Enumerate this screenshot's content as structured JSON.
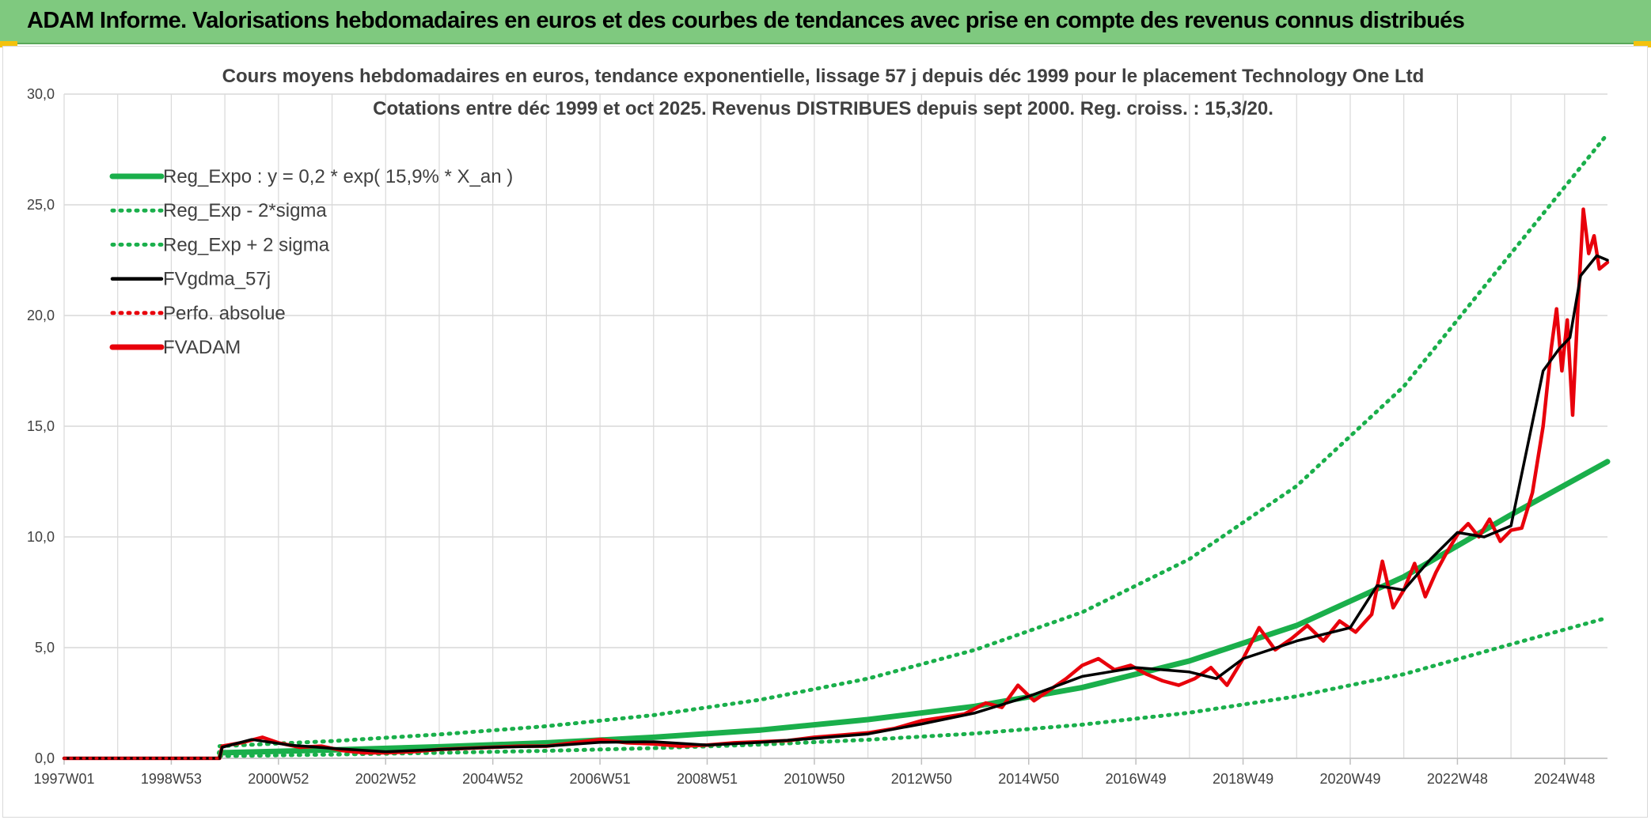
{
  "header": {
    "title": "ADAM Informe. Valorisations hebdomadaires en euros et des courbes de tendances avec prise en compte des revenus connus distribués"
  },
  "colors": {
    "header_bg": "#7fc97f",
    "reg_green": "#1aaf4b",
    "black": "#000000",
    "red": "#e8000b",
    "grid": "#d9d9d9",
    "text": "#404040"
  },
  "chart_data": {
    "type": "line",
    "title": "Cours moyens hebdomadaires en euros, tendance exponentielle, lissage 57 j depuis déc 1999 pour le placement Technology One Ltd",
    "subtitle": "Cotations entre déc 1999 et oct 2025. Revenus DISTRIBUES depuis sept 2000. Reg. croiss. : 15,3/20.",
    "x_tick_labels": [
      "1997W01",
      "1998W53",
      "2000W52",
      "2002W52",
      "2004W52",
      "2006W51",
      "2008W51",
      "2010W50",
      "2012W50",
      "2014W50",
      "2016W49",
      "2018W49",
      "2020W49",
      "2022W48",
      "2024W48"
    ],
    "x_tick_years": [
      1997.0,
      1999.0,
      2001.0,
      2003.0,
      2005.0,
      2007.0,
      2009.0,
      2011.0,
      2013.0,
      2015.0,
      2017.0,
      2019.0,
      2021.0,
      2023.0,
      2025.0
    ],
    "x_range": [
      1997.0,
      2025.8
    ],
    "y_tick_labels": [
      "0,0",
      "5,0",
      "10,0",
      "15,0",
      "20,0",
      "25,0",
      "30,0"
    ],
    "y_ticks": [
      0,
      5,
      10,
      15,
      20,
      25,
      30
    ],
    "ylim": [
      0,
      30
    ],
    "grid": true,
    "legend_position": "top-left",
    "legend": [
      {
        "label": "Reg_Expo : y = 0,2 * exp( 15,9% *  X_an )",
        "style": "solid-thick",
        "color": "#1aaf4b"
      },
      {
        "label": "Reg_Exp - 2*sigma",
        "style": "dotted",
        "color": "#1aaf4b"
      },
      {
        "label": "Reg_Exp + 2 sigma",
        "style": "dotted",
        "color": "#1aaf4b"
      },
      {
        "label": "FVgdma_57j",
        "style": "solid",
        "color": "#000000"
      },
      {
        "label": "Perfo. absolue",
        "style": "dotted",
        "color": "#e8000b"
      },
      {
        "label": "FVADAM",
        "style": "solid-thick",
        "color": "#e8000b"
      }
    ],
    "series": [
      {
        "name": "Reg_Expo",
        "x": [
          1999.9,
          2002,
          2004,
          2006,
          2008,
          2010,
          2012,
          2014,
          2016,
          2018,
          2020,
          2022,
          2024,
          2025.8
        ],
        "y": [
          0.25,
          0.38,
          0.52,
          0.7,
          0.95,
          1.28,
          1.75,
          2.35,
          3.2,
          4.4,
          6.0,
          8.2,
          11.0,
          13.4
        ]
      },
      {
        "name": "Reg_Exp - 2*sigma",
        "x": [
          1999.9,
          2002,
          2004,
          2006,
          2008,
          2010,
          2012,
          2014,
          2016,
          2018,
          2020,
          2022,
          2024,
          2025.8
        ],
        "y": [
          0.1,
          0.17,
          0.25,
          0.34,
          0.46,
          0.62,
          0.84,
          1.12,
          1.52,
          2.06,
          2.8,
          3.8,
          5.15,
          6.35
        ]
      },
      {
        "name": "Reg_Exp + 2 sigma",
        "x": [
          1999.9,
          2002,
          2004,
          2006,
          2008,
          2010,
          2012,
          2014,
          2016,
          2018,
          2020,
          2022,
          2024,
          2025.8
        ],
        "y": [
          0.55,
          0.78,
          1.08,
          1.45,
          1.95,
          2.65,
          3.6,
          4.9,
          6.6,
          9.0,
          12.3,
          16.8,
          22.8,
          28.2
        ]
      },
      {
        "name": "FVgdma_57j",
        "x": [
          1997.0,
          1999.9,
          1999.95,
          2000.5,
          2001.2,
          2002.0,
          2003.0,
          2004.0,
          2005.0,
          2006.0,
          2007.0,
          2008.0,
          2009.0,
          2010.0,
          2011.0,
          2012.0,
          2013.0,
          2014.0,
          2015.0,
          2016.0,
          2017.0,
          2018.0,
          2018.5,
          2019.0,
          2020.0,
          2021.0,
          2021.5,
          2022.0,
          2022.5,
          2023.0,
          2023.5,
          2024.0,
          2024.3,
          2024.6,
          2024.9,
          2025.1,
          2025.3,
          2025.6,
          2025.8
        ],
        "y": [
          0,
          0,
          0.5,
          0.85,
          0.6,
          0.45,
          0.3,
          0.4,
          0.5,
          0.55,
          0.72,
          0.75,
          0.6,
          0.72,
          0.9,
          1.1,
          1.55,
          2.05,
          2.8,
          3.7,
          4.1,
          3.9,
          3.6,
          4.5,
          5.3,
          5.9,
          7.8,
          7.6,
          9.0,
          10.2,
          10.0,
          10.5,
          14.0,
          17.5,
          18.5,
          19.0,
          21.8,
          22.7,
          22.5
        ]
      },
      {
        "name": "Perfo. absolue",
        "x": [
          1997.0,
          1999.9
        ],
        "y": [
          0,
          0
        ]
      },
      {
        "name": "FVADAM",
        "x": [
          1997.0,
          1999.9,
          1999.95,
          2000.3,
          2000.7,
          2001.0,
          2001.4,
          2001.8,
          2002.2,
          2002.6,
          2003.0,
          2003.5,
          2004.0,
          2004.5,
          2005.0,
          2005.5,
          2006.0,
          2006.5,
          2007.0,
          2007.5,
          2008.0,
          2008.5,
          2009.0,
          2009.5,
          2010.0,
          2010.5,
          2011.0,
          2011.5,
          2012.0,
          2012.5,
          2013.0,
          2013.4,
          2013.8,
          2014.2,
          2014.5,
          2014.8,
          2015.1,
          2015.4,
          2015.7,
          2016.0,
          2016.3,
          2016.6,
          2016.9,
          2017.2,
          2017.5,
          2017.8,
          2018.1,
          2018.4,
          2018.7,
          2019.0,
          2019.3,
          2019.6,
          2019.9,
          2020.2,
          2020.5,
          2020.8,
          2021.1,
          2021.4,
          2021.6,
          2021.8,
          2022.0,
          2022.2,
          2022.4,
          2022.6,
          2022.8,
          2023.0,
          2023.2,
          2023.4,
          2023.6,
          2023.8,
          2024.0,
          2024.2,
          2024.4,
          2024.6,
          2024.75,
          2024.85,
          2024.95,
          2025.05,
          2025.15,
          2025.25,
          2025.35,
          2025.45,
          2025.55,
          2025.65,
          2025.8
        ],
        "y": [
          0,
          0,
          0.55,
          0.7,
          0.95,
          0.7,
          0.5,
          0.55,
          0.35,
          0.25,
          0.25,
          0.3,
          0.4,
          0.45,
          0.5,
          0.55,
          0.55,
          0.7,
          0.85,
          0.7,
          0.65,
          0.55,
          0.6,
          0.7,
          0.75,
          0.8,
          0.95,
          1.05,
          1.15,
          1.35,
          1.7,
          1.85,
          2.0,
          2.5,
          2.3,
          3.3,
          2.6,
          3.1,
          3.6,
          4.2,
          4.5,
          4.0,
          4.2,
          3.8,
          3.5,
          3.3,
          3.6,
          4.1,
          3.3,
          4.5,
          5.9,
          4.9,
          5.4,
          6.0,
          5.3,
          6.2,
          5.7,
          6.5,
          8.9,
          6.8,
          7.6,
          8.8,
          7.3,
          8.4,
          9.3,
          10.1,
          10.6,
          10.0,
          10.8,
          9.8,
          10.3,
          10.4,
          12.0,
          15.0,
          18.5,
          20.3,
          17.5,
          19.8,
          15.5,
          20.5,
          24.8,
          22.8,
          23.6,
          22.1,
          22.4
        ]
      }
    ]
  }
}
